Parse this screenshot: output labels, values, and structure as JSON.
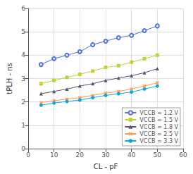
{
  "chart_data": {
    "type": "line",
    "xlabel": "CL - pF",
    "ylabel": "tPLH - ns",
    "xlim": [
      0,
      60
    ],
    "ylim": [
      0,
      6
    ],
    "xticks": [
      0,
      10,
      20,
      30,
      40,
      50,
      60
    ],
    "yticks": [
      0,
      1,
      2,
      3,
      4,
      5,
      6
    ],
    "grid": true,
    "legend": "lower right",
    "x": [
      5,
      10,
      15,
      20,
      25,
      30,
      35,
      40,
      45,
      50
    ],
    "series": [
      {
        "name": "VCCB = 1.2 V",
        "marker": "circle_open",
        "values": [
          3.6,
          3.85,
          4.0,
          4.15,
          4.45,
          4.6,
          4.75,
          4.85,
          5.05,
          5.25
        ]
      },
      {
        "name": "VCCB = 1.5 V",
        "marker": "square",
        "values": [
          2.78,
          2.92,
          3.05,
          3.18,
          3.32,
          3.48,
          3.55,
          3.7,
          3.85,
          4.0
        ]
      },
      {
        "name": "VCCB = 1.8 V",
        "marker": "triangle",
        "values": [
          2.35,
          2.45,
          2.55,
          2.68,
          2.78,
          2.92,
          3.02,
          3.12,
          3.25,
          3.42
        ]
      },
      {
        "name": "VCCB = 2.5 V",
        "marker": "x",
        "values": [
          1.97,
          2.05,
          2.12,
          2.18,
          2.28,
          2.38,
          2.45,
          2.55,
          2.68,
          2.82
        ]
      },
      {
        "name": "VCCB = 3.3 V",
        "marker": "circle",
        "values": [
          1.86,
          1.95,
          2.02,
          2.08,
          2.18,
          2.28,
          2.35,
          2.42,
          2.55,
          2.68
        ]
      }
    ]
  }
}
